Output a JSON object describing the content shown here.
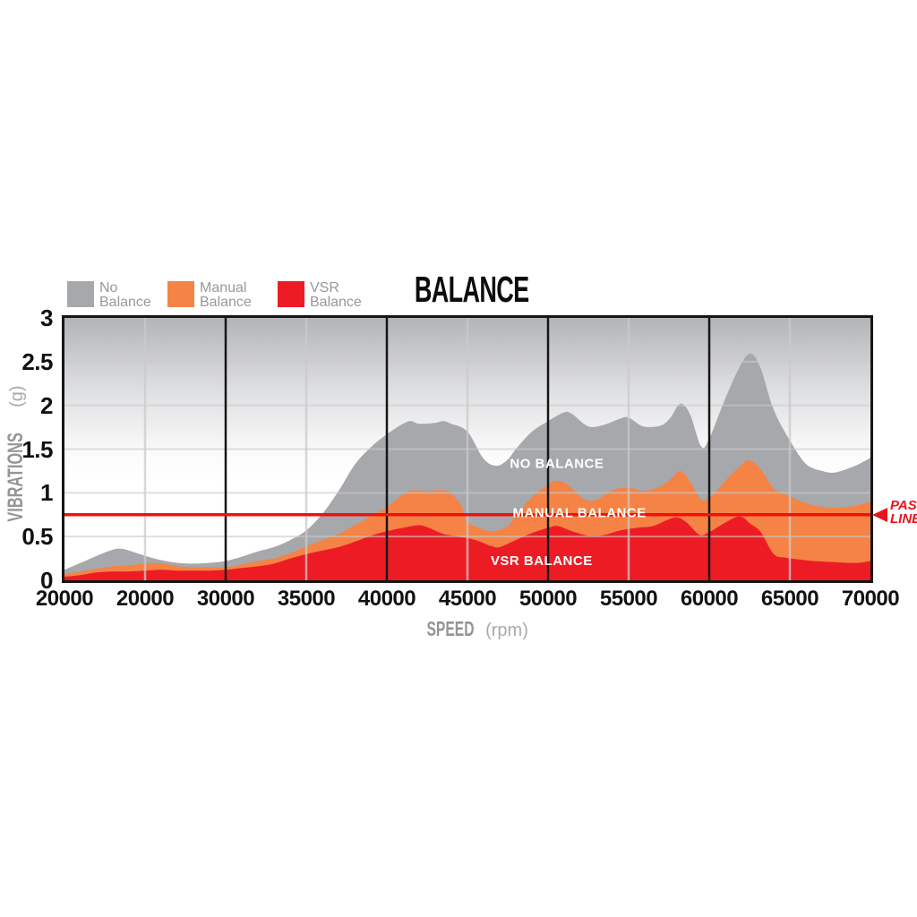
{
  "header": {
    "title": "BALANCE"
  },
  "legend": {
    "items": [
      {
        "name": "No Balance",
        "line1": "No",
        "line2": "Balance",
        "color": "#a6a8ab"
      },
      {
        "name": "Manual Balance",
        "line1": "Manual",
        "line2": "Balance",
        "color": "#f58345"
      },
      {
        "name": "VSR Balance",
        "line1": "VSR",
        "line2": "Balance",
        "color": "#ed1c24"
      }
    ]
  },
  "y_axis": {
    "label": "VIBRATIONS",
    "unit": "(g)",
    "tick_values": [
      0,
      0.5,
      1,
      1.5,
      2,
      2.5,
      3
    ],
    "tick_labels": [
      "0",
      "0.5",
      "1",
      "1.5",
      "2",
      "2.5",
      "3"
    ]
  },
  "x_axis": {
    "label": "SPEED",
    "unit": "(rpm)",
    "tick_labels": [
      "20000",
      "20000",
      "30000",
      "35000",
      "40000",
      "45000",
      "50000",
      "55000",
      "60000",
      "65000",
      "70000"
    ]
  },
  "pass_line": {
    "line1": "PASS",
    "line2": "LINE",
    "color": "#e8141b",
    "value_g": 0.75
  },
  "chart_data": {
    "type": "area",
    "title": "BALANCE",
    "xlabel": "SPEED (rpm)",
    "ylabel": "VIBRATIONS (g)",
    "xlim": [
      20000,
      70000
    ],
    "ylim": [
      0,
      3
    ],
    "x_tick_labels": [
      "20000",
      "20000",
      "30000",
      "35000",
      "40000",
      "45000",
      "50000",
      "55000",
      "60000",
      "65000",
      "70000"
    ],
    "grid": {
      "horizontal_values": [
        0.5,
        1,
        1.5,
        2,
        2.5
      ],
      "vertical_gray_rpm": [
        25000,
        35000,
        45000,
        55000,
        65000
      ],
      "vertical_black_rpm": [
        30000,
        40000,
        50000,
        60000
      ],
      "gray_color": "#c9cacb",
      "black_color": "#161616"
    },
    "pass_line_g": 0.75,
    "pass_line_color": "#f21010",
    "series": [
      {
        "name": "No Balance",
        "label": "NO BALANCE",
        "color": "#a6a8ab",
        "label_at": {
          "rpm": 50550,
          "g": 1.33
        },
        "points": [
          [
            20000,
            0.12
          ],
          [
            21000,
            0.2
          ],
          [
            22000,
            0.28
          ],
          [
            23000,
            0.35
          ],
          [
            23500,
            0.36
          ],
          [
            24000,
            0.34
          ],
          [
            25000,
            0.28
          ],
          [
            26000,
            0.23
          ],
          [
            27000,
            0.2
          ],
          [
            28000,
            0.19
          ],
          [
            29000,
            0.2
          ],
          [
            30000,
            0.22
          ],
          [
            31000,
            0.27
          ],
          [
            32000,
            0.33
          ],
          [
            33000,
            0.38
          ],
          [
            34000,
            0.46
          ],
          [
            35000,
            0.57
          ],
          [
            36000,
            0.76
          ],
          [
            37000,
            1.02
          ],
          [
            38000,
            1.32
          ],
          [
            39000,
            1.52
          ],
          [
            40000,
            1.67
          ],
          [
            41000,
            1.79
          ],
          [
            41500,
            1.82
          ],
          [
            42000,
            1.79
          ],
          [
            43000,
            1.8
          ],
          [
            43500,
            1.82
          ],
          [
            44000,
            1.79
          ],
          [
            45000,
            1.7
          ],
          [
            46000,
            1.39
          ],
          [
            46800,
            1.31
          ],
          [
            47500,
            1.38
          ],
          [
            48000,
            1.5
          ],
          [
            49000,
            1.7
          ],
          [
            50000,
            1.82
          ],
          [
            51000,
            1.92
          ],
          [
            51500,
            1.9
          ],
          [
            52500,
            1.76
          ],
          [
            53500,
            1.78
          ],
          [
            54500,
            1.85
          ],
          [
            55000,
            1.86
          ],
          [
            55900,
            1.76
          ],
          [
            57000,
            1.77
          ],
          [
            57600,
            1.86
          ],
          [
            58200,
            2.02
          ],
          [
            58800,
            1.9
          ],
          [
            59500,
            1.53
          ],
          [
            60000,
            1.62
          ],
          [
            61000,
            2.08
          ],
          [
            62000,
            2.48
          ],
          [
            62600,
            2.59
          ],
          [
            63200,
            2.42
          ],
          [
            64000,
            1.95
          ],
          [
            65000,
            1.6
          ],
          [
            66000,
            1.33
          ],
          [
            67000,
            1.25
          ],
          [
            67700,
            1.23
          ],
          [
            68500,
            1.27
          ],
          [
            69300,
            1.33
          ],
          [
            70000,
            1.4
          ]
        ]
      },
      {
        "name": "Manual Balance",
        "label": "MANUAL BALANCE",
        "color": "#f58345",
        "label_at": {
          "rpm": 51950,
          "g": 0.77
        },
        "points": [
          [
            20000,
            0.07
          ],
          [
            21000,
            0.1
          ],
          [
            22000,
            0.13
          ],
          [
            23000,
            0.16
          ],
          [
            24000,
            0.17
          ],
          [
            25000,
            0.19
          ],
          [
            25600,
            0.2
          ],
          [
            26500,
            0.18
          ],
          [
            27500,
            0.15
          ],
          [
            28500,
            0.15
          ],
          [
            30000,
            0.15
          ],
          [
            31000,
            0.18
          ],
          [
            32000,
            0.22
          ],
          [
            33000,
            0.25
          ],
          [
            34000,
            0.31
          ],
          [
            35000,
            0.39
          ],
          [
            36000,
            0.46
          ],
          [
            37000,
            0.53
          ],
          [
            38000,
            0.63
          ],
          [
            39000,
            0.73
          ],
          [
            40000,
            0.84
          ],
          [
            41000,
            0.98
          ],
          [
            41600,
            1.03
          ],
          [
            42500,
            1.02
          ],
          [
            43500,
            1.03
          ],
          [
            44000,
            0.99
          ],
          [
            44600,
            0.86
          ],
          [
            45000,
            0.67
          ],
          [
            46000,
            0.58
          ],
          [
            46600,
            0.56
          ],
          [
            47500,
            0.62
          ],
          [
            48000,
            0.74
          ],
          [
            49000,
            0.95
          ],
          [
            50000,
            1.09
          ],
          [
            50600,
            1.14
          ],
          [
            51300,
            1.08
          ],
          [
            52200,
            0.93
          ],
          [
            53000,
            0.92
          ],
          [
            54000,
            1.03
          ],
          [
            55000,
            1.06
          ],
          [
            55900,
            1.02
          ],
          [
            56800,
            1.06
          ],
          [
            57500,
            1.14
          ],
          [
            58200,
            1.25
          ],
          [
            58800,
            1.13
          ],
          [
            59500,
            0.92
          ],
          [
            60200,
            0.97
          ],
          [
            61000,
            1.14
          ],
          [
            62000,
            1.32
          ],
          [
            62500,
            1.37
          ],
          [
            63200,
            1.27
          ],
          [
            64000,
            1.05
          ],
          [
            65000,
            0.96
          ],
          [
            66000,
            0.88
          ],
          [
            67000,
            0.84
          ],
          [
            68000,
            0.83
          ],
          [
            69000,
            0.85
          ],
          [
            70000,
            0.9
          ]
        ]
      },
      {
        "name": "VSR Balance",
        "label": "VSR BALANCE",
        "color": "#ed1c24",
        "label_at": {
          "rpm": 49600,
          "g": 0.22
        },
        "points": [
          [
            20000,
            0.04
          ],
          [
            21000,
            0.06
          ],
          [
            22000,
            0.09
          ],
          [
            23000,
            0.1
          ],
          [
            24000,
            0.1
          ],
          [
            25000,
            0.11
          ],
          [
            26000,
            0.12
          ],
          [
            27000,
            0.11
          ],
          [
            28000,
            0.11
          ],
          [
            29000,
            0.11
          ],
          [
            30000,
            0.12
          ],
          [
            31000,
            0.14
          ],
          [
            32000,
            0.16
          ],
          [
            33000,
            0.19
          ],
          [
            34000,
            0.25
          ],
          [
            35000,
            0.3
          ],
          [
            36000,
            0.34
          ],
          [
            37000,
            0.38
          ],
          [
            38000,
            0.44
          ],
          [
            39000,
            0.51
          ],
          [
            40000,
            0.56
          ],
          [
            41000,
            0.6
          ],
          [
            42000,
            0.63
          ],
          [
            42600,
            0.6
          ],
          [
            43500,
            0.53
          ],
          [
            44500,
            0.5
          ],
          [
            45500,
            0.46
          ],
          [
            46500,
            0.39
          ],
          [
            47000,
            0.38
          ],
          [
            48000,
            0.46
          ],
          [
            49000,
            0.54
          ],
          [
            50000,
            0.6
          ],
          [
            50600,
            0.62
          ],
          [
            51500,
            0.56
          ],
          [
            52500,
            0.51
          ],
          [
            53500,
            0.52
          ],
          [
            54500,
            0.57
          ],
          [
            55500,
            0.6
          ],
          [
            56500,
            0.62
          ],
          [
            57400,
            0.69
          ],
          [
            58000,
            0.72
          ],
          [
            58600,
            0.66
          ],
          [
            59400,
            0.52
          ],
          [
            60000,
            0.55
          ],
          [
            61000,
            0.66
          ],
          [
            61900,
            0.73
          ],
          [
            62600,
            0.64
          ],
          [
            63200,
            0.55
          ],
          [
            64000,
            0.3
          ],
          [
            64700,
            0.26
          ],
          [
            65500,
            0.24
          ],
          [
            66500,
            0.22
          ],
          [
            67500,
            0.21
          ],
          [
            68500,
            0.2
          ],
          [
            69300,
            0.2
          ],
          [
            70000,
            0.22
          ]
        ]
      }
    ]
  }
}
